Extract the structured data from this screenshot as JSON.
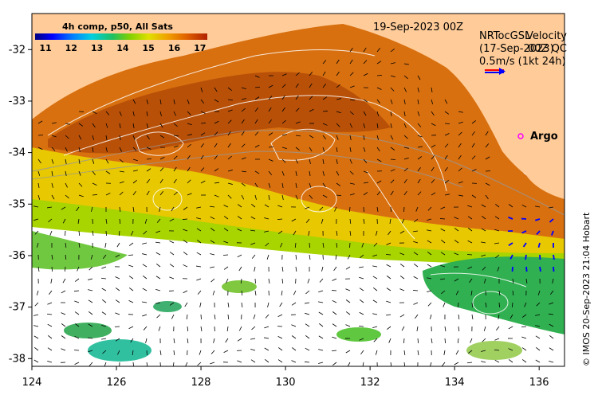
{
  "map": {
    "date_label": "19-Sep-2023 00Z",
    "colorbar": {
      "title": "4h comp, p50, All Sats",
      "ticks": [
        "11",
        "12",
        "13",
        "14",
        "15",
        "16",
        "17"
      ],
      "stops": [
        "#00007f",
        "#0000ff",
        "#0080ff",
        "#00d0e0",
        "#20c060",
        "#80d000",
        "#e0e000",
        "#f0a000",
        "#e06000",
        "#b02000"
      ]
    },
    "legend": {
      "line1": "NRTocGSL",
      "line1_overlay": "Velocity",
      "line2": "(17-Sep-2023)",
      "line2_overlay": "00Z QC",
      "scale_label": "0.5m/s (1kt 24h)",
      "arrow_colors": [
        "#ff0000",
        "#0000ff"
      ]
    },
    "argo_label": "Argo",
    "credit": "© IMOS 20-Sep-2023 21:04 Hobart",
    "x_ticks": [
      "124",
      "126",
      "128",
      "130",
      "132",
      "134",
      "136"
    ],
    "y_ticks": [
      "-32",
      "-33",
      "-34",
      "-35",
      "-36",
      "-37",
      "-38"
    ],
    "colors": {
      "land": "#ffcc99",
      "no_data": "#ffffff",
      "warm_core": "#b85008",
      "orange": "#d87010",
      "contour": "#ffffff"
    }
  }
}
